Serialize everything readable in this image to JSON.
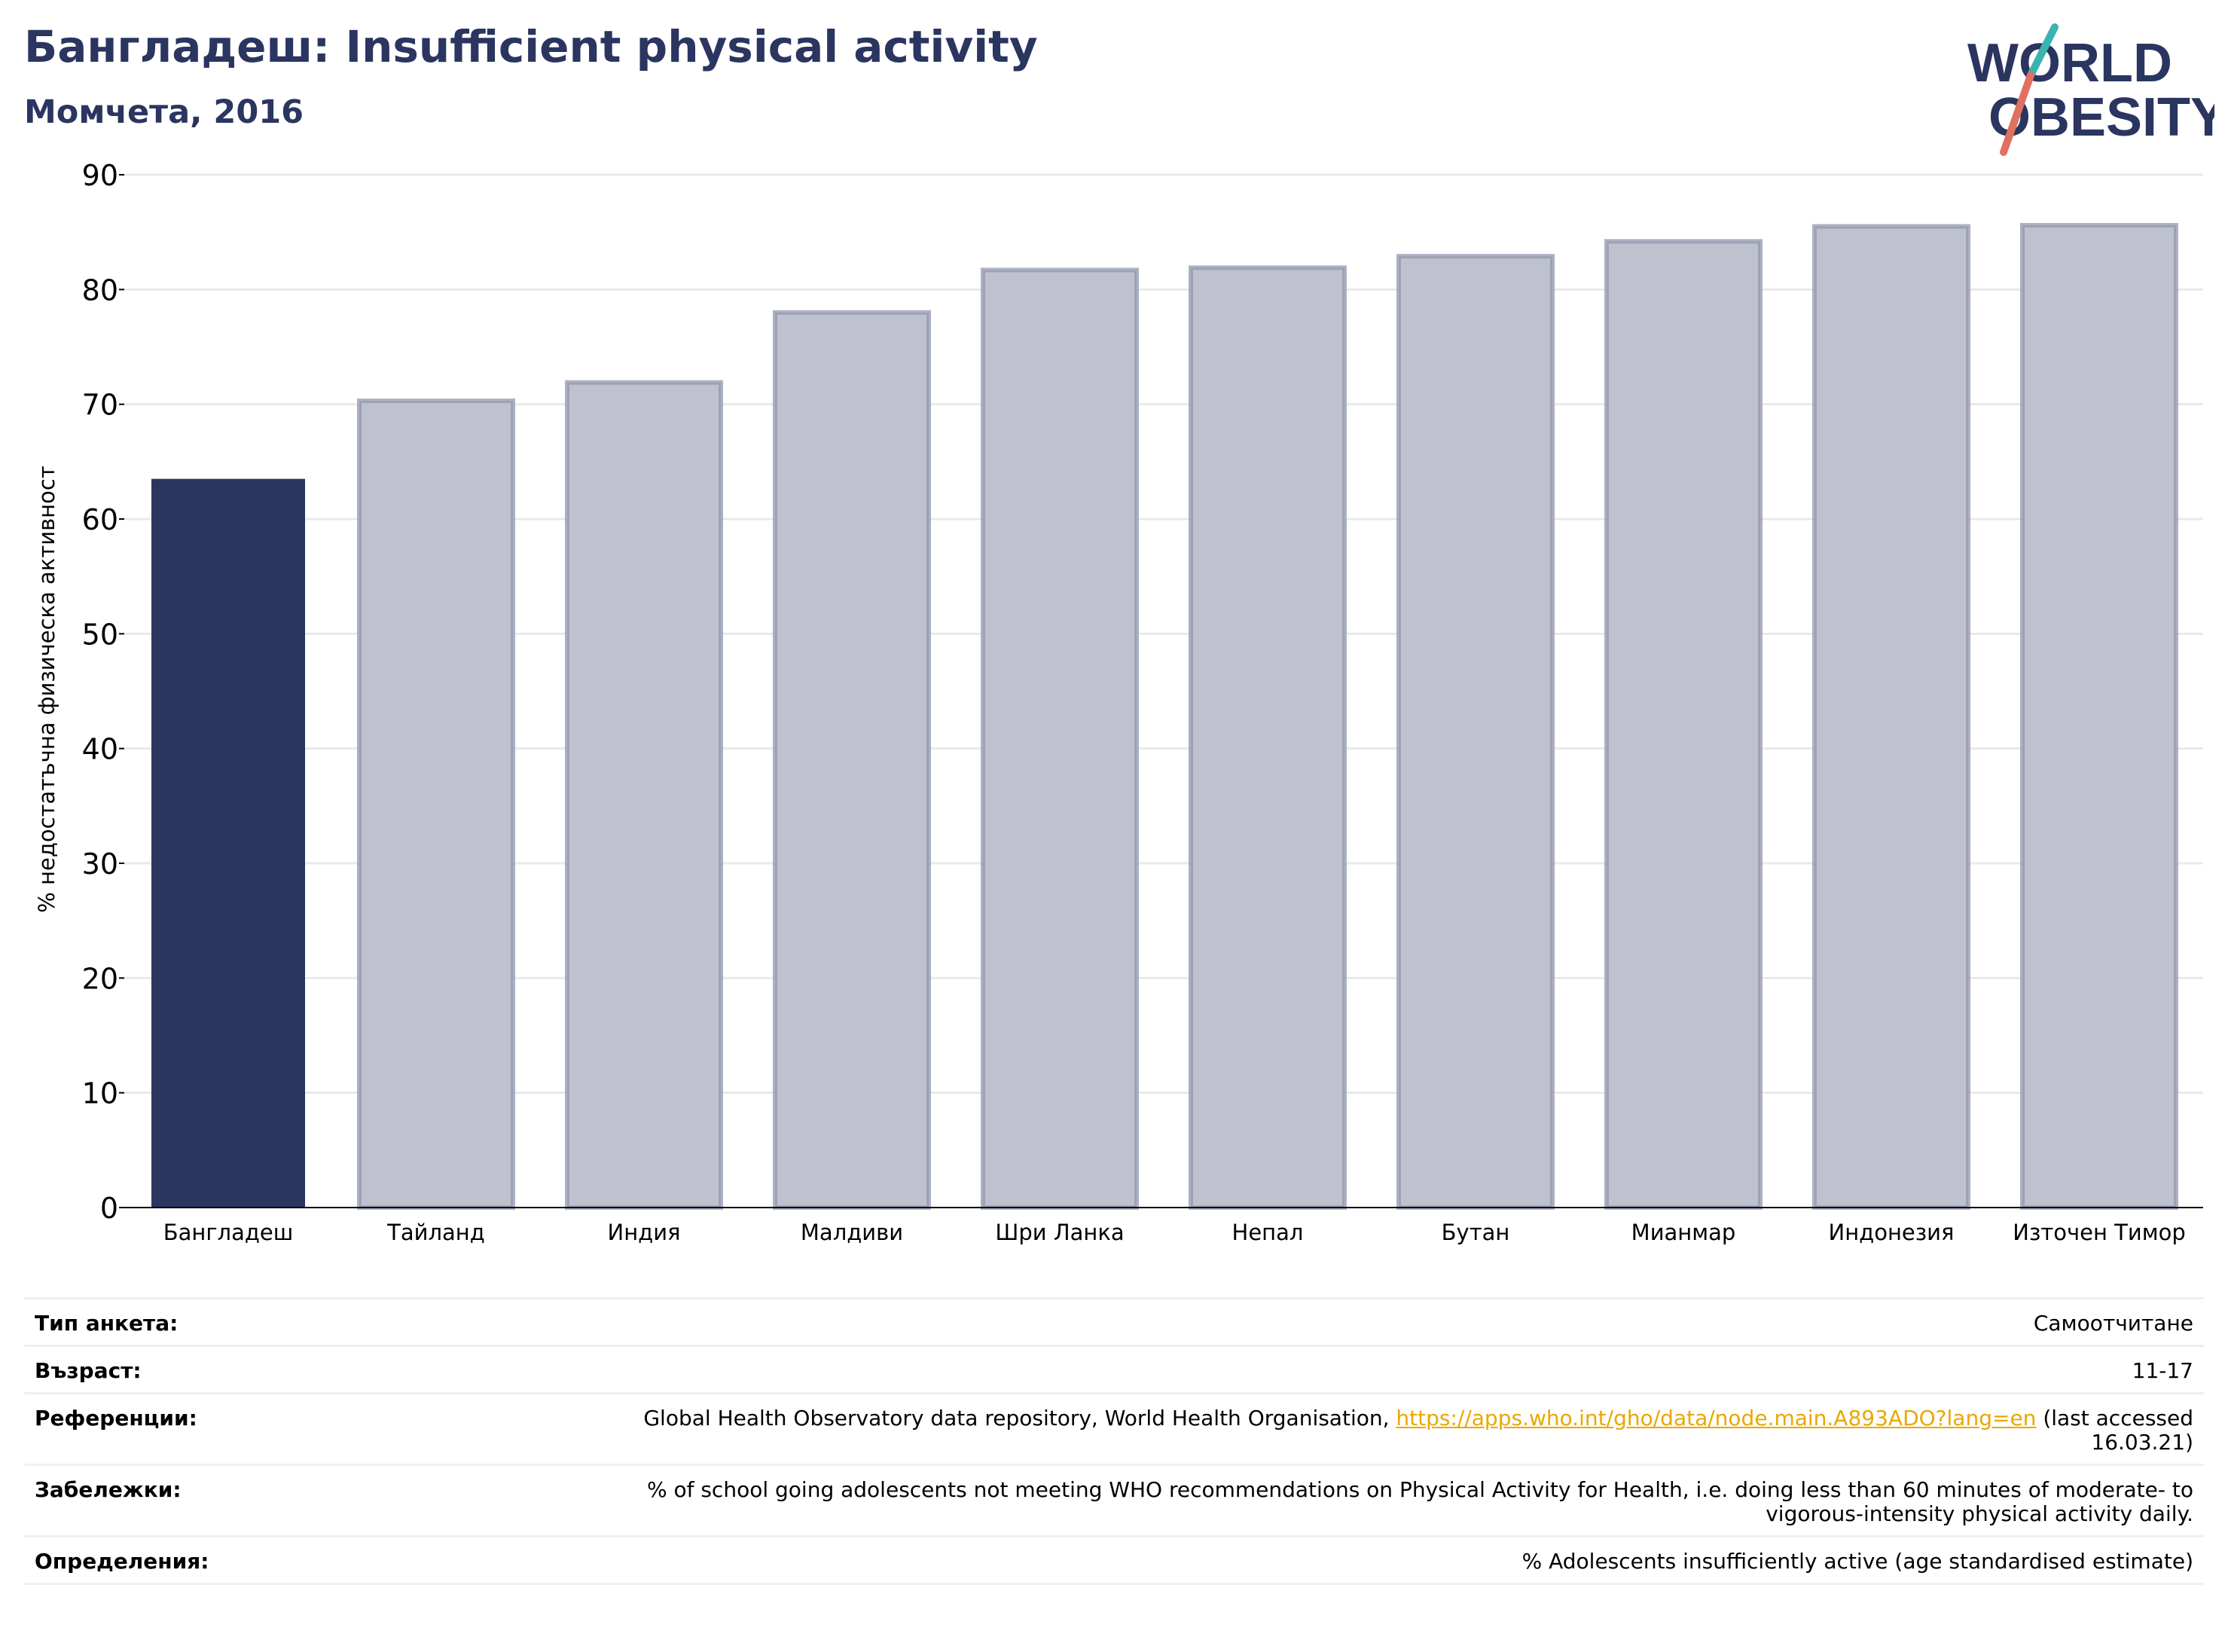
{
  "header": {
    "title": "Бангладеш: Insufficient physical activity",
    "subtitle": "Момчета, 2016"
  },
  "logo": {
    "line1": "WORLD",
    "line2": "OBESITY",
    "colors": {
      "text": "#2a3560",
      "slash_teal": "#3bb3b0",
      "slash_red": "#e07060"
    }
  },
  "chart_data": {
    "type": "bar",
    "categories": [
      "Бангладеш",
      "Тайланд",
      "Индия",
      "Малдиви",
      "Шри Ланка",
      "Непал",
      "Бутан",
      "Мианмар",
      "Индонезия",
      "Източен Тимор"
    ],
    "values": [
      63.5,
      70.3,
      71.9,
      78.0,
      81.7,
      81.9,
      82.9,
      84.2,
      85.5,
      85.6
    ],
    "highlight_index": 0,
    "ylabel": "% недостатъчна физическа активност",
    "ylim": [
      0,
      90
    ],
    "yticks": [
      0,
      10,
      20,
      30,
      40,
      50,
      60,
      70,
      80,
      90
    ],
    "grid": true,
    "colors": {
      "highlight": "#2a3560",
      "other_fill": "#bfc2ce",
      "other_stroke": "#9097ad",
      "grid": "#e9eaee",
      "axis": "#000000"
    }
  },
  "info": [
    {
      "label": "Тип анкета:",
      "value": "Самоотчитане"
    },
    {
      "label": "Възраст:",
      "value": "11-17"
    },
    {
      "label": "Референции:",
      "value_before": "Global Health Observatory data repository, World Health Organisation, ",
      "link": "https://apps.who.int/gho/data/node.main.A893ADO?lang=en",
      "value_after": " (last accessed 16.03.21)"
    },
    {
      "label": "Забележки:",
      "value": "% of school going adolescents not meeting WHO recommendations on Physical Activity for Health, i.e. doing less than 60 minutes of moderate- to vigorous-intensity physical activity daily."
    },
    {
      "label": "Определения:",
      "value": "% Adolescents insufficiently active (age standardised estimate)"
    }
  ]
}
